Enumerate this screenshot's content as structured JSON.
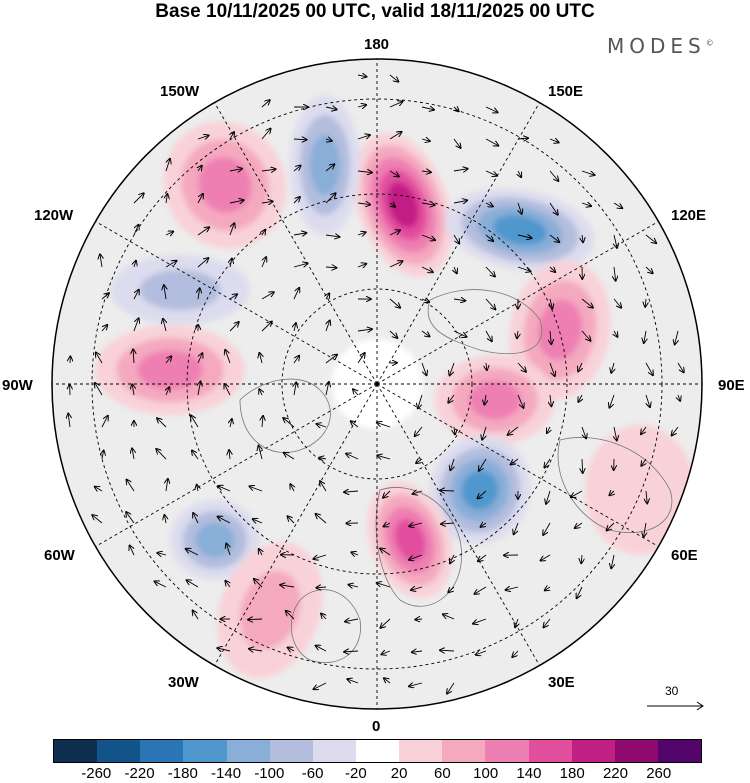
{
  "title": "Base 10/11/2025 00 UTC, valid 18/11/2025 00 UTC",
  "brand": "MODES",
  "brand_mark": "©",
  "longitude_labels": {
    "n180": "180",
    "e150": "150E",
    "e120": "120E",
    "e90": "90E",
    "e60": "60E",
    "e30": "30E",
    "n0": "0",
    "w30": "30W",
    "w60": "60W",
    "w90": "90W",
    "w120": "120W",
    "w150": "150W"
  },
  "reference_vector": "30",
  "colorbar": {
    "colors": [
      "#0e2f4f",
      "#12538a",
      "#2a76b5",
      "#4f97cc",
      "#89aed8",
      "#b3bddd",
      "#dcdcee",
      "#ffffff",
      "#f8d2d8",
      "#f4a9bf",
      "#ee7fb2",
      "#e24e9e",
      "#c21f85",
      "#8e0a71",
      "#54056b"
    ],
    "ticks": [
      "-260",
      "-220",
      "-180",
      "-140",
      "-100",
      "-60",
      "-20",
      "20",
      "60",
      "100",
      "140",
      "180",
      "220",
      "260"
    ]
  },
  "anomalies": [
    {
      "name": "anomaly-positive-north-pacific",
      "value": 220
    },
    {
      "name": "anomaly-positive-alaska",
      "value": 120
    },
    {
      "name": "anomaly-negative-bering",
      "value": -140
    },
    {
      "name": "anomaly-negative-east-siberia",
      "value": -180
    },
    {
      "name": "anomaly-positive-central-asia",
      "value": 140
    },
    {
      "name": "anomaly-positive-western-russia",
      "value": 140
    },
    {
      "name": "anomaly-negative-scandinavia",
      "value": -180
    },
    {
      "name": "anomaly-positive-hudson",
      "value": 140
    },
    {
      "name": "anomaly-negative-canada",
      "value": -100
    },
    {
      "name": "anomaly-negative-newfoundland",
      "value": -140
    },
    {
      "name": "anomaly-positive-atlantic",
      "value": 100
    },
    {
      "name": "anomaly-positive-europe",
      "value": 180
    },
    {
      "name": "anomaly-positive-india",
      "value": 60
    }
  ]
}
